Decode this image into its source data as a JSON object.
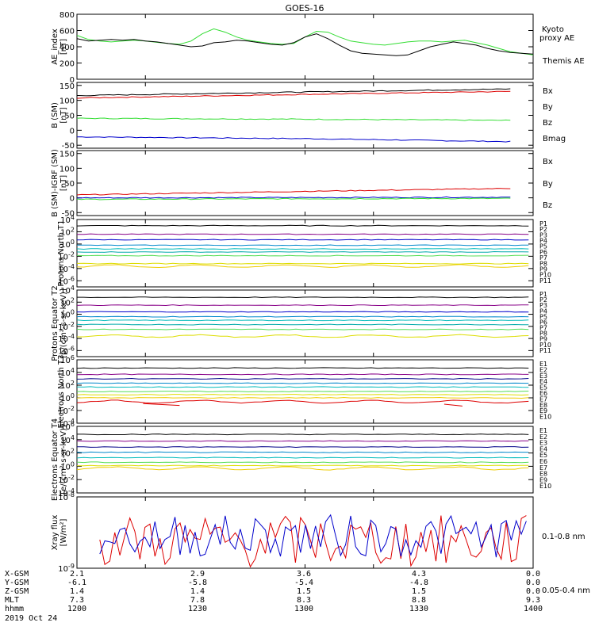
{
  "title": "GOES-16",
  "colors": {
    "black": "#000000",
    "blue": "#0000cc",
    "green": "#33dd33",
    "red": "#dd0000",
    "navy": "#000088",
    "purple": "#880088",
    "cyan": "#00bbbb",
    "teal": "#00aaaa",
    "lightgreen": "#55dd55",
    "yellow": "#dddd00",
    "gold": "#eecc00",
    "orange": "#ff8800",
    "darkred": "#aa0000"
  },
  "chart_data": [
    {
      "type": "line",
      "ylabel": "AE_index [nT]",
      "ylim": [
        0,
        800
      ],
      "yticks": [
        "0",
        "200",
        "400",
        "600",
        "800"
      ],
      "series": [
        {
          "name": "Kyoto proxy AE",
          "color": "#33dd33",
          "x": [
            1200,
            1205,
            1210,
            1215,
            1220,
            1225,
            1230,
            1235,
            1240,
            1245,
            1250,
            1255,
            1260,
            1265,
            1270,
            1275,
            1280,
            1285,
            1290,
            1295,
            1300,
            1305,
            1310,
            1315,
            1320,
            1325,
            1330,
            1335,
            1340,
            1345,
            1350,
            1355,
            1360,
            1365,
            1370,
            1375,
            1380,
            1385,
            1390,
            1395,
            1400
          ],
          "y": [
            540,
            490,
            470,
            460,
            470,
            480,
            470,
            455,
            440,
            430,
            470,
            560,
            620,
            580,
            520,
            480,
            460,
            440,
            430,
            440,
            520,
            590,
            580,
            520,
            470,
            450,
            430,
            420,
            440,
            460,
            470,
            470,
            460,
            470,
            480,
            450,
            420,
            380,
            340,
            320,
            300
          ]
        },
        {
          "name": "Themis AE",
          "color": "#000000",
          "x": [
            1200,
            1205,
            1210,
            1215,
            1220,
            1225,
            1230,
            1235,
            1240,
            1245,
            1250,
            1255,
            1260,
            1265,
            1270,
            1275,
            1280,
            1285,
            1290,
            1295,
            1300,
            1305,
            1310,
            1315,
            1320,
            1325,
            1330,
            1335,
            1340,
            1345,
            1350,
            1355,
            1360,
            1365,
            1370,
            1375,
            1380,
            1385,
            1390,
            1395,
            1400
          ],
          "y": [
            500,
            470,
            480,
            490,
            480,
            490,
            470,
            460,
            440,
            420,
            400,
            410,
            450,
            460,
            480,
            470,
            450,
            430,
            420,
            450,
            520,
            560,
            500,
            420,
            350,
            320,
            310,
            300,
            290,
            300,
            350,
            400,
            430,
            460,
            440,
            420,
            380,
            350,
            330,
            320,
            310
          ]
        }
      ]
    },
    {
      "type": "line",
      "ylabel": "B (SM) [nT]",
      "ylim": [
        -60,
        160
      ],
      "yticks": [
        "-50",
        "0",
        "50",
        "100",
        "150"
      ],
      "series": [
        {
          "name": "Bx",
          "color": "#0000cc",
          "x": [
            1200,
            1300,
            1390
          ],
          "y": [
            -22,
            -28,
            -38
          ]
        },
        {
          "name": "By",
          "color": "#33dd33",
          "x": [
            1200,
            1300,
            1390
          ],
          "y": [
            40,
            37,
            33
          ]
        },
        {
          "name": "Bz",
          "color": "#dd0000",
          "x": [
            1200,
            1300,
            1390
          ],
          "y": [
            108,
            120,
            130
          ]
        },
        {
          "name": "Bmag",
          "color": "#000000",
          "x": [
            1200,
            1300,
            1390
          ],
          "y": [
            116,
            128,
            138
          ]
        }
      ]
    },
    {
      "type": "line",
      "ylabel": "B (SM)-IGRF (SM) [nT]",
      "ylim": [
        -60,
        160
      ],
      "yticks": [
        "-50",
        "0",
        "50",
        "100",
        "150"
      ],
      "series": [
        {
          "name": "Bx",
          "color": "#0000cc",
          "x": [
            1200,
            1300,
            1390
          ],
          "y": [
            0,
            1,
            2
          ]
        },
        {
          "name": "By",
          "color": "#33dd33",
          "x": [
            1200,
            1300,
            1390
          ],
          "y": [
            -5,
            -3,
            -2
          ]
        },
        {
          "name": "Bz",
          "color": "#dd0000",
          "x": [
            1200,
            1300,
            1390
          ],
          "y": [
            10,
            22,
            32
          ]
        }
      ]
    },
    {
      "type": "line",
      "ylabel": "Protons North T1",
      "ylog": [
        -7,
        4
      ],
      "yticks": [
        "10^4",
        "10^2",
        "10^0",
        "10^-2",
        "10^-4",
        "10^-6"
      ],
      "series_labels": [
        "P1",
        "P2",
        "P3",
        "P4",
        "P5",
        "P6",
        "P7",
        "P8",
        "P9",
        "P10",
        "P11"
      ],
      "series_colors": [
        "#000000",
        "#880088",
        "#0000cc",
        "#0088cc",
        "#00bbbb",
        "#00aaaa",
        "#55dd55",
        "#dddd00",
        "#eecc00",
        "#ff8800",
        "#dd0000"
      ],
      "levels": [
        3.0,
        1.6,
        0.7,
        -0.2,
        -0.8,
        -1.3,
        -1.9,
        -3.2,
        -3.6
      ]
    },
    {
      "type": "line",
      "ylabel": "Protons Equator T2 [p/(cm²-s-sr-keV)]",
      "ylog": [
        -7,
        4
      ],
      "yticks": [
        "10^4",
        "10^2",
        "10^0",
        "10^-2",
        "10^-4",
        "10^-6"
      ],
      "series_labels": [
        "P1",
        "P2",
        "P3",
        "P4",
        "P5",
        "P6",
        "P7",
        "P8",
        "P9",
        "P10",
        "P11"
      ],
      "series_colors": [
        "#000000",
        "#880088",
        "#0000cc",
        "#0088cc",
        "#00bbbb",
        "#00aaaa",
        "#55dd55",
        "#dddd00",
        "#eecc00",
        "#ff8800",
        "#dd0000"
      ],
      "levels": [
        2.8,
        1.5,
        0.4,
        -0.4,
        -1.0,
        -1.7,
        -2.5,
        -3.6
      ]
    },
    {
      "type": "line",
      "ylabel": "Electrons North T3",
      "ylog": [
        -4,
        6
      ],
      "yticks": [
        "10^6",
        "10^4",
        "10^2",
        "10^0",
        "10^-2",
        "10^-4"
      ],
      "series_labels": [
        "E1",
        "E2",
        "E3",
        "E4",
        "E5",
        "E6",
        "E7",
        "E8",
        "E9",
        "E10"
      ],
      "series_colors": [
        "#000000",
        "#880088",
        "#000088",
        "#0088cc",
        "#00bbbb",
        "#55dd55",
        "#dddd00",
        "#eecc00",
        "#dd0000",
        "#aa0000"
      ],
      "levels": [
        4.7,
        3.7,
        3.0,
        2.3,
        1.7,
        1.0,
        0.5,
        0.0,
        -0.6
      ]
    },
    {
      "type": "line",
      "ylabel": "Electrons Equator T4 [e/(cm²-s-sr-keV)]",
      "ylog": [
        -4,
        6
      ],
      "yticks": [
        "10^6",
        "10^4",
        "10^2",
        "10^0",
        "10^-2",
        "10^-4"
      ],
      "series_labels": [
        "E1",
        "E2",
        "E3",
        "E4",
        "E5",
        "E6",
        "E7",
        "E8",
        "E9",
        "E10"
      ],
      "series_colors": [
        "#000000",
        "#880088",
        "#000088",
        "#0088cc",
        "#00bbbb",
        "#55dd55",
        "#dddd00",
        "#eecc00",
        "#dd0000",
        "#aa0000"
      ],
      "levels": [
        4.8,
        3.8,
        2.9,
        2.1,
        1.3,
        0.6,
        0.1,
        -0.3
      ]
    },
    {
      "type": "line",
      "ylabel": "Xray flux [W/m²]",
      "ylog": [
        -9,
        -8
      ],
      "yticks": [
        "10^-8",
        "10^-9"
      ],
      "series": [
        {
          "name": "0.1-0.8 nm",
          "color": "#dd0000"
        },
        {
          "name": "0.05-0.4 nm",
          "color": "#0000cc"
        }
      ]
    }
  ],
  "xaxis": {
    "rows": [
      {
        "label": "X-GSM",
        "values": [
          "2.1",
          "2.9",
          "3.6",
          "4.3",
          "0.0"
        ]
      },
      {
        "label": "Y-GSM",
        "values": [
          "-6.1",
          "-5.8",
          "-5.4",
          "-4.8",
          "0.0"
        ]
      },
      {
        "label": "Z-GSM",
        "values": [
          "1.4",
          "1.4",
          "1.5",
          "1.5",
          "0.0"
        ]
      },
      {
        "label": "MLT",
        "values": [
          "7.3",
          "7.8",
          "8.3",
          "8.8",
          "9.3"
        ]
      },
      {
        "label": "hhmm",
        "values": [
          "1200",
          "1230",
          "1300",
          "1330",
          "1400"
        ]
      }
    ],
    "date": "2019 Oct 24"
  }
}
